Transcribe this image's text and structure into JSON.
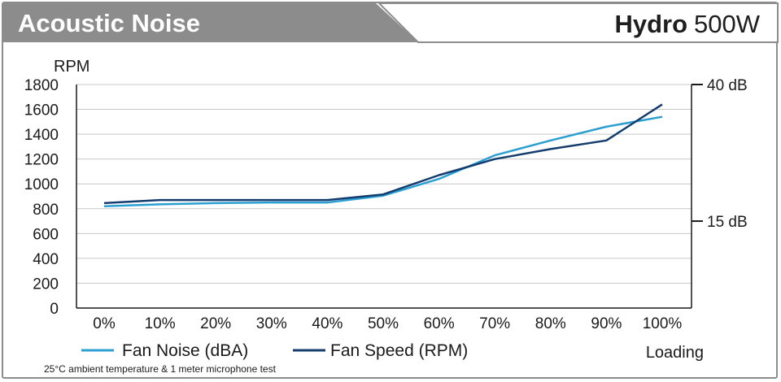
{
  "header": {
    "title": "Acoustic Noise",
    "product_bold": "Hydro",
    "product_rest": "500W"
  },
  "colors": {
    "fan_noise": "#2b9fd1",
    "fan_speed": "#133d6e",
    "header_bg": "#8c8c8c"
  },
  "footnote": "25°C ambient temperature & 1 meter microphone test",
  "chart_data": {
    "type": "line",
    "xlabel": "Loading",
    "ylabel": "RPM",
    "ylim": [
      0,
      1800
    ],
    "y_ticks": [
      0,
      200,
      400,
      600,
      800,
      1000,
      1200,
      1400,
      1600,
      1800
    ],
    "y2_ticks": [
      "40 dB",
      "15 dB"
    ],
    "y2_tick_rpm": [
      1800,
      700
    ],
    "categories": [
      "0%",
      "10%",
      "20%",
      "30%",
      "40%",
      "50%",
      "60%",
      "70%",
      "80%",
      "90%",
      "100%"
    ],
    "grid": true,
    "legend_position": "bottom-left",
    "series": [
      {
        "name": "Fan Noise (dBA)",
        "axis": "right",
        "values_on_left_scale": [
          820,
          835,
          845,
          850,
          850,
          905,
          1040,
          1230,
          1350,
          1460,
          1540
        ]
      },
      {
        "name": "Fan Speed (RPM)",
        "axis": "left",
        "values": [
          845,
          870,
          870,
          870,
          870,
          915,
          1070,
          1200,
          1280,
          1350,
          1640
        ]
      }
    ]
  }
}
